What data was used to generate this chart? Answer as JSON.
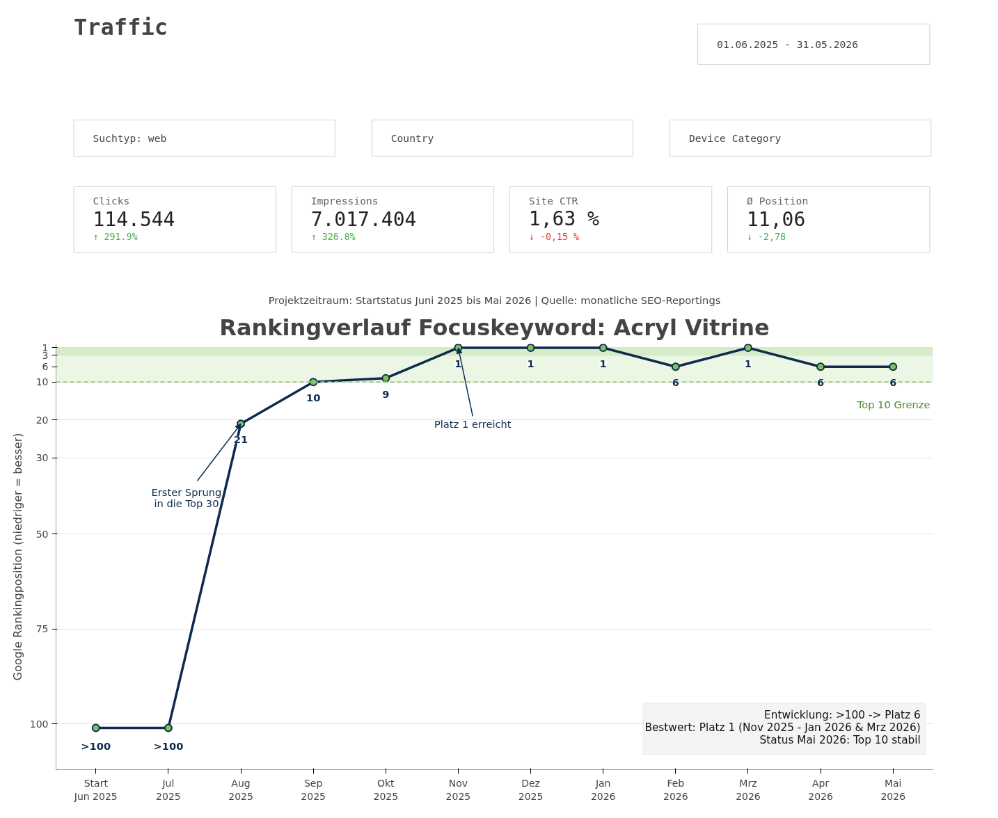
{
  "chart_data": [
    {
      "type": "other",
      "title": "Traffic",
      "annotations": [
        "01.06.2025 - 31.05.2026",
        "Suchtyp: web",
        "Country",
        "Device Category",
        "Clicks",
        "114.544",
        "↑ 291.9%",
        "Impressions",
        "7.017.404",
        "↑ 326.8%",
        "Site CTR",
        "1,63 %",
        "↓ -0,15 %",
        "Ø Position",
        "11,06",
        "↓ -2,78"
      ],
      "colors": [
        "#4caf50",
        "#4caf50",
        "#e53935",
        "#4caf50"
      ]
    },
    {
      "type": "line",
      "title": "Rankingverlauf Focuskeyword: Acryl Vitrine",
      "subtitle": "Projektzeitraum: Startstatus Juni 2025 bis Mai 2026 | Quelle: monatliche SEO-Reportings",
      "ylabel": "Google Rankingposition (niedriger = besser)",
      "categories": [
        "Start\nJun 2025",
        "Jul\n2025",
        "Aug\n2025",
        "Sep\n2025",
        "Okt\n2025",
        "Nov\n2025",
        "Dez\n2025",
        "Jan\n2026",
        "Feb\n2026",
        "Mrz\n2026",
        "Apr\n2026",
        "Mai\n2026"
      ],
      "series": [
        {
          "color": "#0d2b4e",
          "values": [
            101,
            101,
            21,
            10,
            9,
            1,
            1,
            1,
            6,
            1,
            6,
            6
          ],
          "value_labels": [
            ">100",
            ">100",
            "21",
            "10",
            "9",
            "1",
            "1",
            "1",
            "6",
            "1",
            "6",
            "6"
          ]
        }
      ],
      "ylim": [
        112,
        0
      ],
      "yticks": [
        1,
        3,
        6,
        10,
        20,
        30,
        50,
        75,
        100
      ],
      "grid": "y",
      "marker": "circle",
      "line_style": "solid",
      "ref_lines": [
        {
          "axis": "y",
          "value": 10,
          "label": "Top 10 Grenze",
          "color": "#9ccc80",
          "line_style": "dashed"
        }
      ],
      "bands": [
        {
          "axis": "y",
          "from": 1,
          "to": 3,
          "color": "#d6edc9"
        },
        {
          "axis": "y",
          "from": 3,
          "to": 10,
          "color": "#ebf7e4"
        }
      ],
      "annotations": [
        {
          "text": "Erster Sprung\nin die Top 30",
          "x": "Aug\n2025",
          "y": 21
        },
        {
          "text": "Platz 1 erreicht",
          "x": "Nov\n2025",
          "y": 1
        },
        "Entwicklung: >100 -> Platz 6",
        "Bestwert: Platz 1 (Nov 2025 - Jan 2026 & Mrz 2026)",
        "Status Mai 2026: Top 10 stabil"
      ]
    }
  ]
}
